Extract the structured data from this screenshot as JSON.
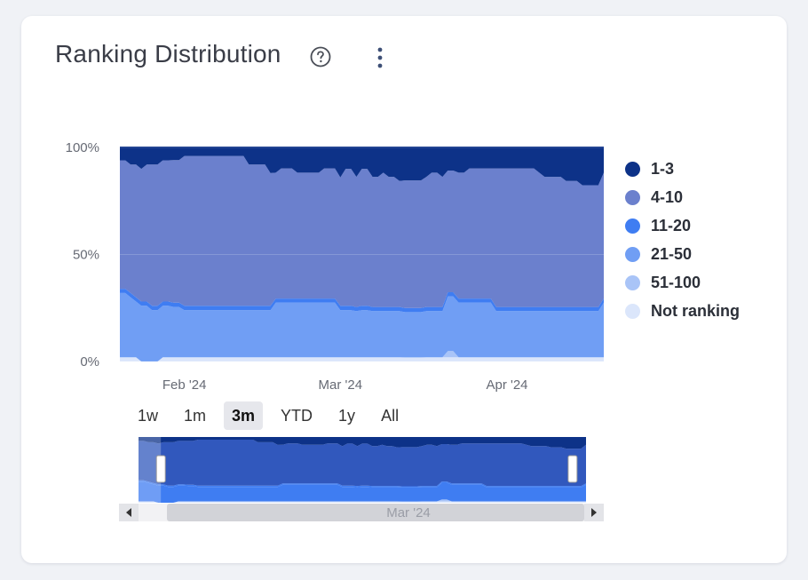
{
  "card": {
    "title": "Ranking Distribution",
    "icons": {
      "help": "help-circle-icon",
      "more": "more-vertical-icon"
    }
  },
  "chart_data": {
    "type": "area",
    "stacking": "percent",
    "x_start": "2024-01-20",
    "x_end": "2024-04-19",
    "ylim": [
      0,
      100
    ],
    "y_ticks": [
      "0%",
      "50%",
      "100%"
    ],
    "x_ticks": [
      {
        "label": "Feb '24",
        "date": "2024-02-01"
      },
      {
        "label": "Mar '24",
        "date": "2024-03-01"
      },
      {
        "label": "Apr '24",
        "date": "2024-04-01"
      }
    ],
    "series": [
      {
        "name": "Not ranking",
        "color": "#dbe6fb",
        "values": [
          2,
          2,
          2,
          2,
          0,
          0,
          0,
          0,
          2,
          2,
          2,
          2,
          2,
          2,
          2,
          2,
          2,
          2,
          2,
          2,
          2,
          2,
          2,
          2,
          2,
          2,
          2,
          2,
          2,
          2,
          2,
          2,
          2,
          2,
          2,
          2,
          2,
          2,
          2,
          2,
          2,
          2,
          2,
          2,
          2,
          2,
          2,
          2,
          2,
          2,
          2,
          2,
          2,
          2,
          2,
          2,
          2,
          2,
          2,
          2,
          2,
          2,
          2,
          2,
          2,
          2,
          2,
          2,
          2,
          2,
          2,
          2,
          2,
          2,
          2,
          2,
          2,
          2,
          2,
          2,
          2,
          2,
          2,
          2,
          2,
          2,
          2,
          2,
          2,
          2,
          2
        ]
      },
      {
        "name": "51-100",
        "color": "#a9c4f7",
        "values": [
          0,
          0,
          0,
          0,
          0,
          0,
          0,
          0,
          0,
          0,
          0,
          0,
          0,
          0,
          0,
          0,
          0,
          0,
          0,
          0,
          0,
          0,
          0,
          0,
          0,
          0,
          0,
          0,
          0,
          0,
          0,
          0,
          0,
          0,
          0,
          0,
          0,
          0,
          0,
          0,
          0,
          0,
          0,
          0,
          0,
          0,
          0,
          0,
          0,
          0,
          0,
          0,
          0,
          0,
          0,
          0,
          0,
          0,
          0,
          0,
          0,
          3,
          3,
          0,
          0,
          0,
          0,
          0,
          0,
          0,
          0,
          0,
          0,
          0,
          0,
          0,
          0,
          0,
          0,
          0,
          0,
          0,
          0,
          0,
          0,
          0,
          0,
          0,
          0,
          0,
          0
        ]
      },
      {
        "name": "21-50",
        "color": "#709ef4",
        "values": [
          30,
          30,
          28,
          26,
          26,
          26,
          24,
          24,
          24,
          24,
          24,
          24,
          22,
          22,
          22,
          22,
          22,
          22,
          22,
          22,
          22,
          22,
          22,
          22,
          22,
          22,
          22,
          22,
          22,
          26,
          26,
          26,
          26,
          26,
          26,
          26,
          26,
          26,
          26,
          26,
          26,
          22,
          22,
          22,
          22,
          22,
          22,
          22,
          22,
          22,
          22,
          22,
          22,
          22,
          22,
          22,
          22,
          22,
          22,
          22,
          22,
          26,
          26,
          26,
          26,
          26,
          26,
          26,
          26,
          26,
          22,
          22,
          22,
          22,
          22,
          22,
          22,
          22,
          22,
          22,
          22,
          22,
          22,
          22,
          22,
          22,
          22,
          22,
          22,
          22,
          26
        ]
      },
      {
        "name": "11-20",
        "color": "#3f7df2",
        "values": [
          2,
          2,
          2,
          2,
          2,
          2,
          2,
          2,
          2,
          2,
          2,
          2,
          2,
          2,
          2,
          2,
          2,
          2,
          2,
          2,
          2,
          2,
          2,
          2,
          2,
          2,
          2,
          2,
          2,
          2,
          2,
          2,
          2,
          2,
          2,
          2,
          2,
          2,
          2,
          2,
          2,
          2,
          2,
          2,
          2,
          2,
          2,
          2,
          2,
          2,
          2,
          2,
          2,
          2,
          2,
          2,
          2,
          2,
          2,
          2,
          2,
          2,
          2,
          2,
          2,
          2,
          2,
          2,
          2,
          2,
          2,
          2,
          2,
          2,
          2,
          2,
          2,
          2,
          2,
          2,
          2,
          2,
          2,
          2,
          2,
          2,
          2,
          2,
          2,
          2,
          2
        ]
      },
      {
        "name": "4-10",
        "color": "#6b80cd",
        "values": [
          60,
          60,
          60,
          62,
          62,
          64,
          66,
          66,
          66,
          66,
          68,
          68,
          70,
          70,
          70,
          70,
          70,
          70,
          70,
          70,
          70,
          70,
          70,
          70,
          66,
          66,
          66,
          66,
          62,
          60,
          62,
          62,
          62,
          60,
          60,
          60,
          60,
          60,
          62,
          62,
          62,
          60,
          64,
          64,
          62,
          64,
          64,
          62,
          62,
          64,
          62,
          62,
          60,
          62,
          62,
          62,
          62,
          62,
          64,
          64,
          62,
          58,
          58,
          60,
          60,
          62,
          62,
          62,
          62,
          62,
          66,
          66,
          66,
          66,
          66,
          66,
          66,
          66,
          64,
          62,
          62,
          62,
          62,
          60,
          60,
          60,
          58,
          58,
          58,
          58,
          60
        ]
      },
      {
        "name": "1-3",
        "color": "#0d3288",
        "values": [
          6,
          6,
          8,
          8,
          10,
          8,
          8,
          8,
          6,
          6,
          6,
          6,
          4,
          4,
          4,
          4,
          4,
          4,
          4,
          4,
          4,
          4,
          4,
          4,
          8,
          8,
          8,
          8,
          12,
          12,
          10,
          10,
          10,
          12,
          12,
          12,
          12,
          12,
          10,
          10,
          10,
          14,
          10,
          10,
          14,
          10,
          10,
          14,
          14,
          12,
          14,
          14,
          16,
          16,
          16,
          16,
          16,
          14,
          12,
          12,
          14,
          11,
          11,
          12,
          12,
          10,
          10,
          10,
          10,
          10,
          10,
          10,
          10,
          10,
          10,
          10,
          10,
          10,
          12,
          14,
          14,
          14,
          14,
          16,
          16,
          16,
          18,
          18,
          18,
          18,
          12
        ]
      }
    ]
  },
  "range_selector": {
    "buttons": [
      "1w",
      "1m",
      "3m",
      "YTD",
      "1y",
      "All"
    ],
    "selected": "3m"
  },
  "navigator": {
    "label": "Mar '24",
    "selection_start": 0.05,
    "selection_end": 0.97,
    "scroll_left_icon": "triangle-left-icon",
    "scroll_right_icon": "triangle-right-icon",
    "handle_icon": "drag-handle-icon"
  }
}
